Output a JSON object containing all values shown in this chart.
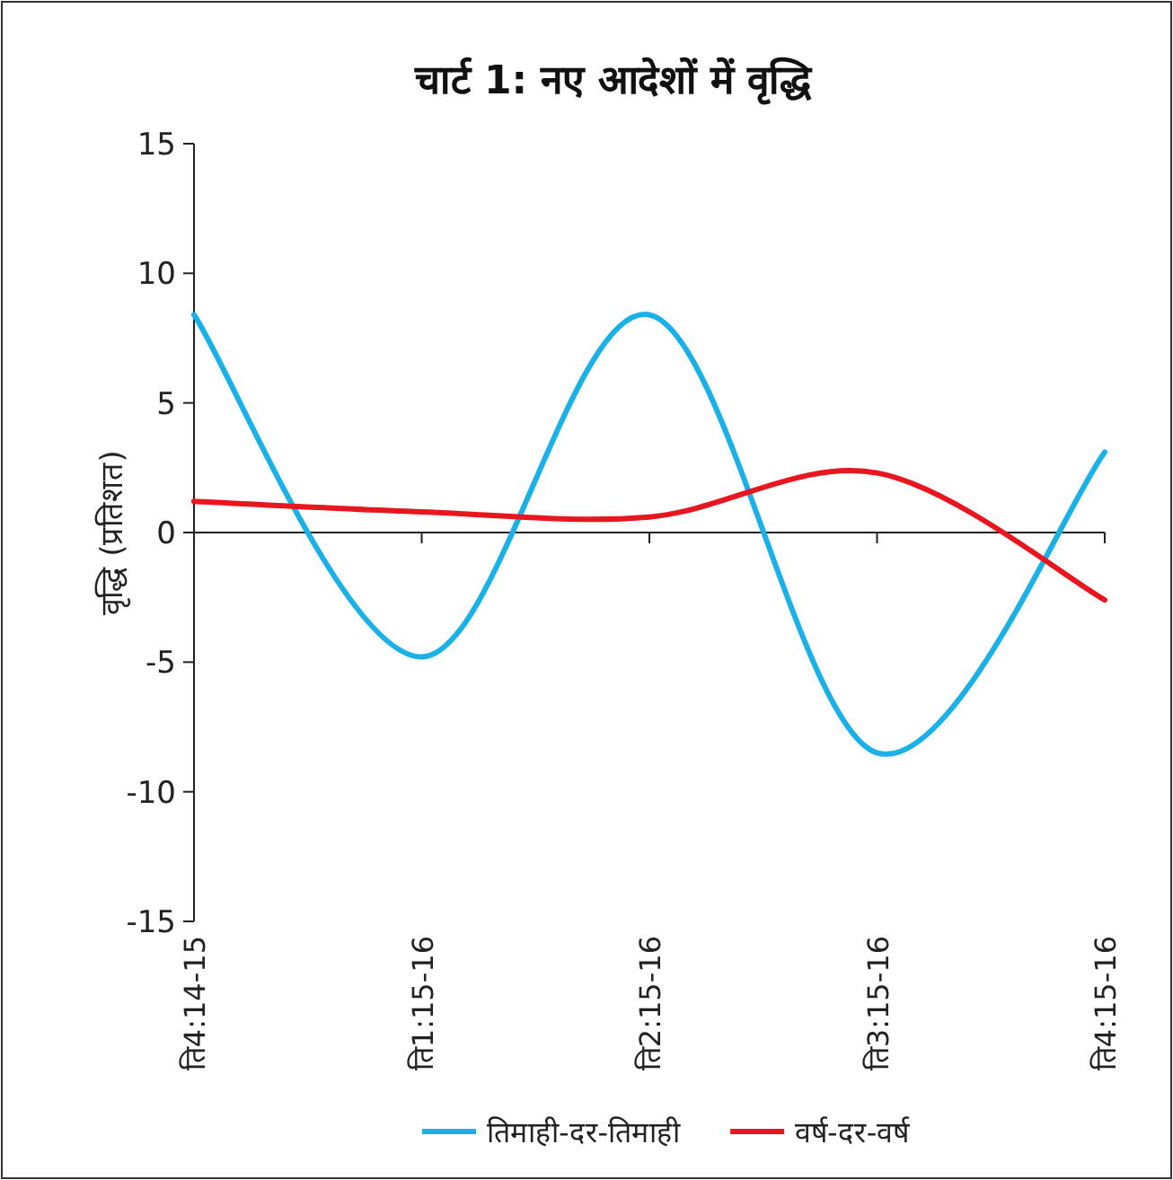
{
  "chart_data": {
    "type": "line",
    "title": "चार्ट 1: नए आदेशों में वृद्धि",
    "ylabel": "वृद्धि (प्रतिशत)",
    "categories": [
      "ति4:14-15",
      "ति1:15-16",
      "ति2:15-16",
      "ति3:15-16",
      "ति4:15-16"
    ],
    "series": [
      {
        "name": "तिमाही-दर-तिमाही",
        "color": "#1ab0e8",
        "values": [
          8.4,
          -4.8,
          8.4,
          -8.5,
          3.1
        ]
      },
      {
        "name": "वर्ष-दर-वर्ष",
        "color": "#e8161e",
        "values": [
          1.2,
          0.8,
          0.6,
          2.3,
          -2.6
        ]
      }
    ],
    "ylim": [
      -15,
      15
    ],
    "yticks": [
      -15,
      -10,
      -5,
      0,
      5,
      10,
      15
    ],
    "legend": "bottom",
    "marker": "none",
    "line_style": "solid"
  }
}
